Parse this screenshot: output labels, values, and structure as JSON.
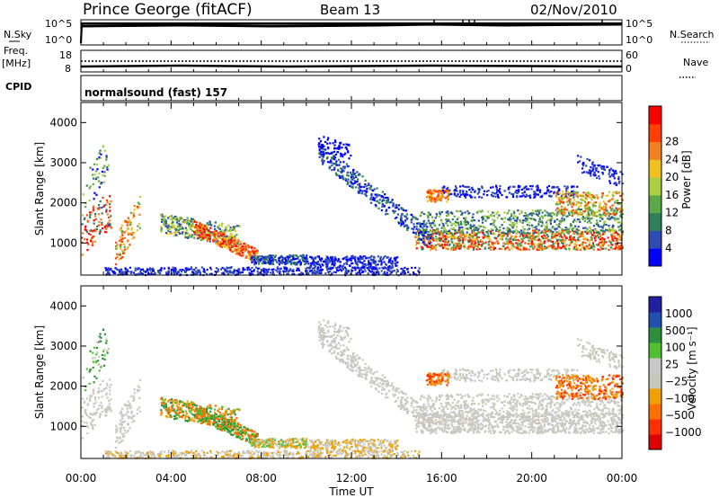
{
  "header": {
    "station": "Prince George (fitACF)",
    "beam": "Beam 13",
    "date": "02/Nov/2010"
  },
  "top_panels": {
    "nsky_label": "N.Sky",
    "nsky_ticks": [
      "10^5",
      "10^0"
    ],
    "nsearch_label": "N.Search",
    "freq_label_1": "Freq.",
    "freq_label_2": "[MHz]",
    "freq_ticks": [
      "18",
      "8"
    ],
    "nave_label": "Nave",
    "nave_ticks": [
      "60",
      "0"
    ],
    "cpid_label": "CPID",
    "cpid_value": "normalsound (fast) 157"
  },
  "colors": {
    "power_scale": [
      "#0000ff",
      "#2e4bb5",
      "#2f7f5a",
      "#5aa84a",
      "#a8d040",
      "#f0c020",
      "#f08020",
      "#ff4000",
      "#ff0000"
    ],
    "velocity_scale": [
      "#e00000",
      "#ff3000",
      "#ff7000",
      "#f0a000",
      "#c8c8b8",
      "#c8c8c8",
      "#50c030",
      "#2f8f3f",
      "#2050b0",
      "#2020a0"
    ]
  },
  "chart_data": [
    {
      "type": "heatmap",
      "name": "power",
      "ylabel": "Slant Range [km]",
      "yticks": [
        "1000",
        "2000",
        "3000",
        "4000"
      ],
      "ylim": [
        200,
        4500
      ],
      "xticks": [
        "00:00",
        "04:00",
        "08:00",
        "12:00",
        "16:00",
        "20:00",
        "00:00"
      ],
      "xlim": [
        "00:00",
        "24:00"
      ],
      "colorbar_label": "Power [dB]",
      "colorbar_ticks": [
        "4",
        "8",
        "12",
        "16",
        "20",
        "24",
        "28"
      ]
    },
    {
      "type": "heatmap",
      "name": "velocity",
      "ylabel": "Slant Range [km]",
      "yticks": [
        "1000",
        "2000",
        "3000",
        "4000"
      ],
      "ylim": [
        200,
        4500
      ],
      "xticks": [
        "00:00",
        "04:00",
        "08:00",
        "12:00",
        "16:00",
        "20:00",
        "00:00"
      ],
      "xlim": [
        "00:00",
        "24:00"
      ],
      "xlabel": "Time UT",
      "colorbar_label": "Velocity [m s⁻¹]",
      "colorbar_ticks": [
        "1000",
        "500",
        "100",
        "25",
        "−25",
        "−100",
        "−500",
        "−1000"
      ]
    }
  ]
}
